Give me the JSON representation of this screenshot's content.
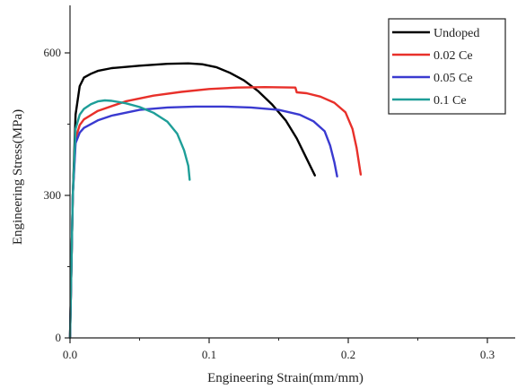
{
  "chart_data": {
    "type": "line",
    "title": "",
    "xlabel": "Engineering Strain(mm/mm)",
    "ylabel": "Engineering Stress(MPa)",
    "xlim": [
      0,
      0.32
    ],
    "ylim": [
      0,
      700
    ],
    "x_ticks": [
      0.0,
      0.1,
      0.2,
      0.3
    ],
    "x_tick_labels": [
      "0.0",
      "0.1",
      "0.2",
      "0.3"
    ],
    "y_ticks": [
      0,
      300,
      600
    ],
    "y_tick_labels": [
      "0",
      "300",
      "600"
    ],
    "grid": false,
    "legend_position": "top-right",
    "series": [
      {
        "name": "Undoped",
        "color": "#000000",
        "points": [
          [
            0,
            0
          ],
          [
            0.002,
            300
          ],
          [
            0.004,
            470
          ],
          [
            0.007,
            530
          ],
          [
            0.01,
            548
          ],
          [
            0.015,
            556
          ],
          [
            0.02,
            562
          ],
          [
            0.03,
            568
          ],
          [
            0.05,
            573
          ],
          [
            0.07,
            577
          ],
          [
            0.085,
            578
          ],
          [
            0.095,
            576
          ],
          [
            0.105,
            570
          ],
          [
            0.115,
            558
          ],
          [
            0.125,
            542
          ],
          [
            0.135,
            520
          ],
          [
            0.145,
            492
          ],
          [
            0.155,
            458
          ],
          [
            0.163,
            420
          ],
          [
            0.17,
            378
          ],
          [
            0.176,
            342
          ]
        ]
      },
      {
        "name": "0.02 Ce",
        "color": "#e8302a",
        "points": [
          [
            0,
            0
          ],
          [
            0.002,
            300
          ],
          [
            0.004,
            420
          ],
          [
            0.007,
            448
          ],
          [
            0.01,
            460
          ],
          [
            0.02,
            478
          ],
          [
            0.04,
            498
          ],
          [
            0.06,
            510
          ],
          [
            0.08,
            518
          ],
          [
            0.1,
            524
          ],
          [
            0.12,
            527
          ],
          [
            0.14,
            528
          ],
          [
            0.162,
            527
          ],
          [
            0.163,
            517
          ],
          [
            0.17,
            515
          ],
          [
            0.18,
            508
          ],
          [
            0.19,
            495
          ],
          [
            0.198,
            475
          ],
          [
            0.203,
            440
          ],
          [
            0.206,
            400
          ],
          [
            0.209,
            344
          ]
        ]
      },
      {
        "name": "0.05 Ce",
        "color": "#3a3ad0",
        "points": [
          [
            0,
            0
          ],
          [
            0.002,
            300
          ],
          [
            0.004,
            410
          ],
          [
            0.007,
            432
          ],
          [
            0.01,
            442
          ],
          [
            0.02,
            458
          ],
          [
            0.03,
            468
          ],
          [
            0.05,
            480
          ],
          [
            0.07,
            485
          ],
          [
            0.09,
            487
          ],
          [
            0.11,
            487
          ],
          [
            0.13,
            485
          ],
          [
            0.15,
            480
          ],
          [
            0.165,
            470
          ],
          [
            0.175,
            456
          ],
          [
            0.183,
            435
          ],
          [
            0.187,
            405
          ],
          [
            0.19,
            370
          ],
          [
            0.192,
            340
          ]
        ]
      },
      {
        "name": "0.1 Ce",
        "color": "#1e9e98",
        "points": [
          [
            0,
            0
          ],
          [
            0.002,
            300
          ],
          [
            0.004,
            440
          ],
          [
            0.007,
            470
          ],
          [
            0.01,
            482
          ],
          [
            0.015,
            492
          ],
          [
            0.02,
            498
          ],
          [
            0.025,
            500
          ],
          [
            0.03,
            499
          ],
          [
            0.04,
            494
          ],
          [
            0.05,
            486
          ],
          [
            0.06,
            474
          ],
          [
            0.07,
            455
          ],
          [
            0.077,
            430
          ],
          [
            0.082,
            395
          ],
          [
            0.085,
            362
          ],
          [
            0.086,
            333
          ]
        ]
      }
    ]
  }
}
